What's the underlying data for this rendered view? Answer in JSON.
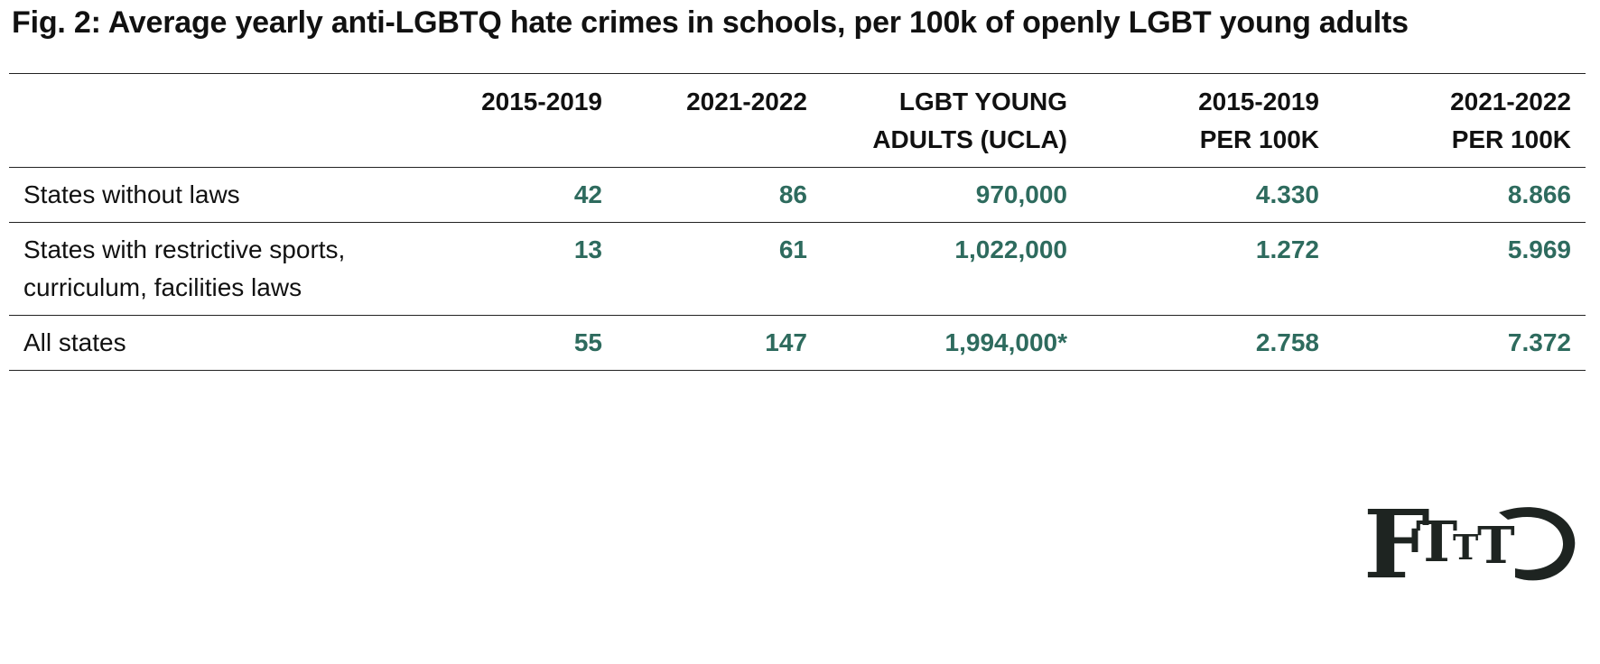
{
  "figure": {
    "title": "Fig. 2: Average yearly anti-LGBTQ hate crimes in schools, per 100k of openly LGBT young adults"
  },
  "chart_data": {
    "type": "table",
    "title": "Fig. 2: Average yearly anti-LGBTQ hate crimes in schools, per 100k of openly LGBT young adults",
    "columns": [
      "",
      "2015-2019",
      "2021-2022",
      "LGBT YOUNG ADULTS (UCLA)",
      "2015-2019 PER 100K",
      "2021-2022 PER 100K"
    ],
    "header_lines": [
      [
        ""
      ],
      [
        "2015-2019"
      ],
      [
        "2021-2022"
      ],
      [
        "LGBT YOUNG",
        "ADULTS (UCLA)"
      ],
      [
        "2015-2019",
        "PER 100K"
      ],
      [
        "2021-2022",
        "PER 100K"
      ]
    ],
    "rows": [
      {
        "label": "States without laws",
        "values": [
          "42",
          "86",
          "970,000",
          "4.330",
          "8.866"
        ]
      },
      {
        "label": "States with restrictive sports, curriculum, facilities laws",
        "values": [
          "13",
          "61",
          "1,022,000",
          "1.272",
          "5.969"
        ]
      },
      {
        "label": "All states",
        "values": [
          "55",
          "147",
          "1,994,000*",
          "2.758",
          "7.372"
        ]
      }
    ],
    "colors": {
      "value_text": "#2e6b5e",
      "label_text": "#111111",
      "rule": "#222222"
    }
  },
  "logo": {
    "text": "FTTTG",
    "color": "#1e2421"
  }
}
